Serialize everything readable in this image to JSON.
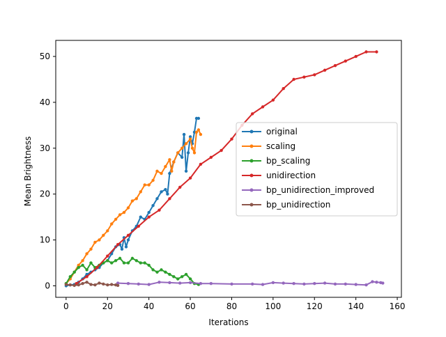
{
  "chart_data": {
    "type": "line",
    "title": "",
    "xlabel": "Iterations",
    "ylabel": "Mean Brightness",
    "xlim": [
      -5,
      162
    ],
    "ylim": [
      -2.5,
      53.5
    ],
    "xticks": [
      0,
      20,
      40,
      60,
      80,
      100,
      120,
      140,
      160
    ],
    "yticks": [
      0,
      10,
      20,
      30,
      40,
      50
    ],
    "grid": false,
    "legend_position": "center-right",
    "series": [
      {
        "name": "original",
        "color": "#1f77b4",
        "points": [
          [
            0,
            0
          ],
          [
            2,
            0.2
          ],
          [
            4,
            0.3
          ],
          [
            6,
            0.8
          ],
          [
            8,
            1.5
          ],
          [
            10,
            2.5
          ],
          [
            12,
            3
          ],
          [
            14,
            3.5
          ],
          [
            16,
            4
          ],
          [
            18,
            5
          ],
          [
            20,
            5.5
          ],
          [
            22,
            7
          ],
          [
            24,
            8.5
          ],
          [
            26,
            9
          ],
          [
            27,
            8
          ],
          [
            28,
            10.5
          ],
          [
            29,
            8.5
          ],
          [
            30,
            10
          ],
          [
            32,
            12
          ],
          [
            34,
            13
          ],
          [
            36,
            15
          ],
          [
            38,
            14.5
          ],
          [
            40,
            16
          ],
          [
            42,
            17.5
          ],
          [
            44,
            19
          ],
          [
            46,
            20.5
          ],
          [
            48,
            21
          ],
          [
            49,
            20
          ],
          [
            50,
            24.5
          ],
          [
            52,
            27
          ],
          [
            54,
            29
          ],
          [
            56,
            28
          ],
          [
            57,
            33
          ],
          [
            58,
            25
          ],
          [
            59,
            29
          ],
          [
            60,
            32.5
          ],
          [
            61,
            31
          ],
          [
            62,
            33.5
          ],
          [
            63,
            36.5
          ],
          [
            64,
            36.5
          ]
        ]
      },
      {
        "name": "scaling",
        "color": "#ff7f0e",
        "points": [
          [
            0,
            0.5
          ],
          [
            2,
            1.5
          ],
          [
            4,
            3
          ],
          [
            6,
            4.5
          ],
          [
            8,
            5.5
          ],
          [
            10,
            7
          ],
          [
            12,
            8
          ],
          [
            14,
            9.5
          ],
          [
            16,
            10
          ],
          [
            18,
            11
          ],
          [
            20,
            12
          ],
          [
            22,
            13.5
          ],
          [
            24,
            14.5
          ],
          [
            26,
            15.5
          ],
          [
            28,
            16
          ],
          [
            30,
            17
          ],
          [
            32,
            18.5
          ],
          [
            34,
            19
          ],
          [
            36,
            20.5
          ],
          [
            38,
            22
          ],
          [
            40,
            22
          ],
          [
            42,
            23
          ],
          [
            44,
            25
          ],
          [
            46,
            24.5
          ],
          [
            48,
            26
          ],
          [
            50,
            27.5
          ],
          [
            51,
            25
          ],
          [
            52,
            27
          ],
          [
            54,
            29
          ],
          [
            56,
            30
          ],
          [
            58,
            31
          ],
          [
            60,
            32
          ],
          [
            61,
            30
          ],
          [
            62,
            29
          ],
          [
            63,
            33.5
          ],
          [
            64,
            34
          ],
          [
            65,
            33
          ]
        ]
      },
      {
        "name": "bp_scaling",
        "color": "#2ca02c",
        "points": [
          [
            0,
            0.5
          ],
          [
            2,
            2
          ],
          [
            4,
            3
          ],
          [
            6,
            4
          ],
          [
            8,
            4.5
          ],
          [
            10,
            3.5
          ],
          [
            12,
            5
          ],
          [
            14,
            4
          ],
          [
            16,
            4.5
          ],
          [
            18,
            5
          ],
          [
            20,
            5.5
          ],
          [
            22,
            5
          ],
          [
            24,
            5.5
          ],
          [
            26,
            6
          ],
          [
            28,
            5
          ],
          [
            30,
            5
          ],
          [
            32,
            6
          ],
          [
            34,
            5.5
          ],
          [
            36,
            5
          ],
          [
            38,
            5
          ],
          [
            40,
            4.5
          ],
          [
            42,
            3.5
          ],
          [
            44,
            3
          ],
          [
            46,
            3.5
          ],
          [
            48,
            3
          ],
          [
            50,
            2.5
          ],
          [
            52,
            2
          ],
          [
            54,
            1.5
          ],
          [
            56,
            2
          ],
          [
            58,
            2.5
          ],
          [
            60,
            1.5
          ],
          [
            62,
            0.5
          ],
          [
            64,
            0.3
          ]
        ]
      },
      {
        "name": "unidirection",
        "color": "#d62728",
        "points": [
          [
            5,
            0.5
          ],
          [
            10,
            2
          ],
          [
            15,
            4
          ],
          [
            20,
            6.5
          ],
          [
            25,
            9
          ],
          [
            30,
            11
          ],
          [
            35,
            13
          ],
          [
            40,
            15
          ],
          [
            45,
            16.5
          ],
          [
            50,
            19
          ],
          [
            55,
            21.5
          ],
          [
            60,
            23.5
          ],
          [
            65,
            26.5
          ],
          [
            70,
            28
          ],
          [
            75,
            29.5
          ],
          [
            80,
            32
          ],
          [
            85,
            35
          ],
          [
            90,
            37.5
          ],
          [
            95,
            39
          ],
          [
            100,
            40.5
          ],
          [
            105,
            43
          ],
          [
            110,
            45
          ],
          [
            115,
            45.5
          ],
          [
            120,
            46
          ],
          [
            125,
            47
          ],
          [
            130,
            48
          ],
          [
            135,
            49
          ],
          [
            140,
            50
          ],
          [
            145,
            51
          ],
          [
            150,
            51
          ]
        ]
      },
      {
        "name": "bp_unidirection_improved",
        "color": "#9467bd",
        "points": [
          [
            25,
            0.6
          ],
          [
            30,
            0.5
          ],
          [
            35,
            0.4
          ],
          [
            40,
            0.3
          ],
          [
            45,
            0.8
          ],
          [
            50,
            0.7
          ],
          [
            55,
            0.6
          ],
          [
            60,
            0.7
          ],
          [
            65,
            0.5
          ],
          [
            70,
            0.5
          ],
          [
            80,
            0.4
          ],
          [
            90,
            0.4
          ],
          [
            95,
            0.3
          ],
          [
            100,
            0.7
          ],
          [
            105,
            0.6
          ],
          [
            110,
            0.5
          ],
          [
            115,
            0.4
          ],
          [
            120,
            0.5
          ],
          [
            125,
            0.6
          ],
          [
            130,
            0.4
          ],
          [
            135,
            0.4
          ],
          [
            140,
            0.3
          ],
          [
            145,
            0.2
          ],
          [
            148,
            0.9
          ],
          [
            150,
            0.8
          ],
          [
            152,
            0.7
          ],
          [
            153,
            0.6
          ]
        ]
      },
      {
        "name": "bp_unidirection",
        "color": "#8c564b",
        "points": [
          [
            0,
            0.3
          ],
          [
            2,
            0.2
          ],
          [
            4,
            0.1
          ],
          [
            6,
            0.2
          ],
          [
            8,
            0.5
          ],
          [
            10,
            0.8
          ],
          [
            12,
            0.3
          ],
          [
            14,
            0.2
          ],
          [
            16,
            0.6
          ],
          [
            18,
            0.4
          ],
          [
            20,
            0.2
          ],
          [
            22,
            0.3
          ],
          [
            24,
            0.2
          ],
          [
            25,
            0.1
          ]
        ]
      }
    ]
  }
}
